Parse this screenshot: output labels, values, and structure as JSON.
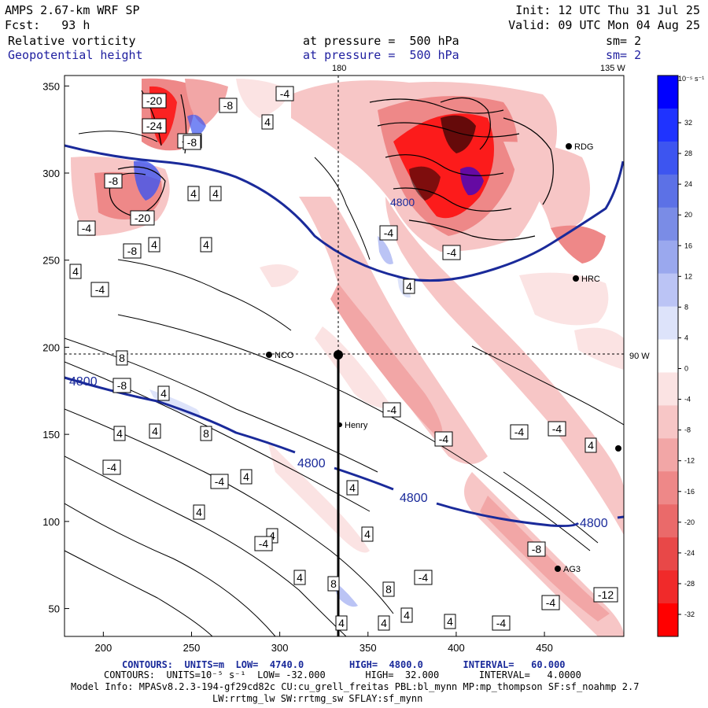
{
  "header": {
    "model": "AMPS 2.67-km WRF SP",
    "init": "Init: 12 UTC Thu 31 Jul 25",
    "fcst": "Fcst:   93 h",
    "valid": "Valid: 09 UTC Mon 04 Aug 25",
    "field1_name": "Relative vorticity",
    "field1_level": "at pressure =  500 hPa",
    "field1_sm": "sm= 2",
    "field2_name": "Geopotential height",
    "field2_level": "at pressure =  500 hPa",
    "field2_sm": "sm= 2"
  },
  "map_labels": {
    "lon_180": "180",
    "lon_135w": "135 W",
    "lon_90w": "90 W",
    "stations": [
      "RDG",
      "HRC",
      "NCO",
      "Henry",
      "AG3"
    ]
  },
  "axes": {
    "x_ticks": [
      "200",
      "250",
      "300",
      "350",
      "400",
      "450"
    ],
    "y_ticks": [
      "350",
      "300",
      "250",
      "200",
      "150",
      "100",
      "50"
    ]
  },
  "colorbar": {
    "unit": "10⁻⁵ s⁻¹",
    "ticks": [
      "32",
      "28",
      "24",
      "20",
      "16",
      "12",
      "8",
      "4",
      "0",
      "-4",
      "-8",
      "-12",
      "-16",
      "-20",
      "-24",
      "-28",
      "-32"
    ],
    "colors": [
      "#0000ff",
      "#1f33ff",
      "#3d55f0",
      "#5c71e6",
      "#7a8ce6",
      "#9aa8ee",
      "#bbc4f5",
      "#dde3fa",
      "#ffffff",
      "#fbe3e3",
      "#f7c6c6",
      "#f2a6a6",
      "#ee8888",
      "#ea6a6a",
      "#e84848",
      "#f02a2a",
      "#ff0000"
    ]
  },
  "contour_labels": {
    "vorticity": [
      "-20",
      "-8",
      "-4",
      "4",
      "-24",
      "-12",
      "-8",
      "4",
      "4",
      "4",
      "-20",
      "-8",
      "4",
      "-4",
      "-8",
      "-4",
      "4",
      "-4",
      "-4",
      "4",
      "8",
      "4",
      "4",
      "4",
      "-4",
      "8",
      "-4",
      "-8",
      "-4",
      "-4",
      "-4",
      "4",
      "4",
      "4",
      "-4",
      "4",
      "4",
      "4",
      "-4",
      "4",
      "8",
      "8",
      "-4",
      "-8",
      "-12",
      "-4",
      "4",
      "4",
      "4",
      "4",
      "-4"
    ],
    "height": [
      "4800",
      "4800",
      "4800",
      "4800",
      "4800"
    ]
  },
  "footer": {
    "line1": "CONTOURS:  UNITS=m  LOW=  4740.0        HIGH=  4800.0       INTERVAL=   60.000",
    "line2": "CONTOURS:  UNITS=10⁻⁵ s⁻¹  LOW= -32.000       HIGH=  32.000       INTERVAL=   4.0000",
    "line3": "Model Info: MPASv8.2.3-194-gf29cd82c CU:cu_grell_freitas PBL:bl_mynn MP:mp_thompson SF:sf_noahmp 2.7",
    "line4": "LW:rrtmg_lw SW:rrtmg_sw SFLAY:sf_mynn"
  }
}
